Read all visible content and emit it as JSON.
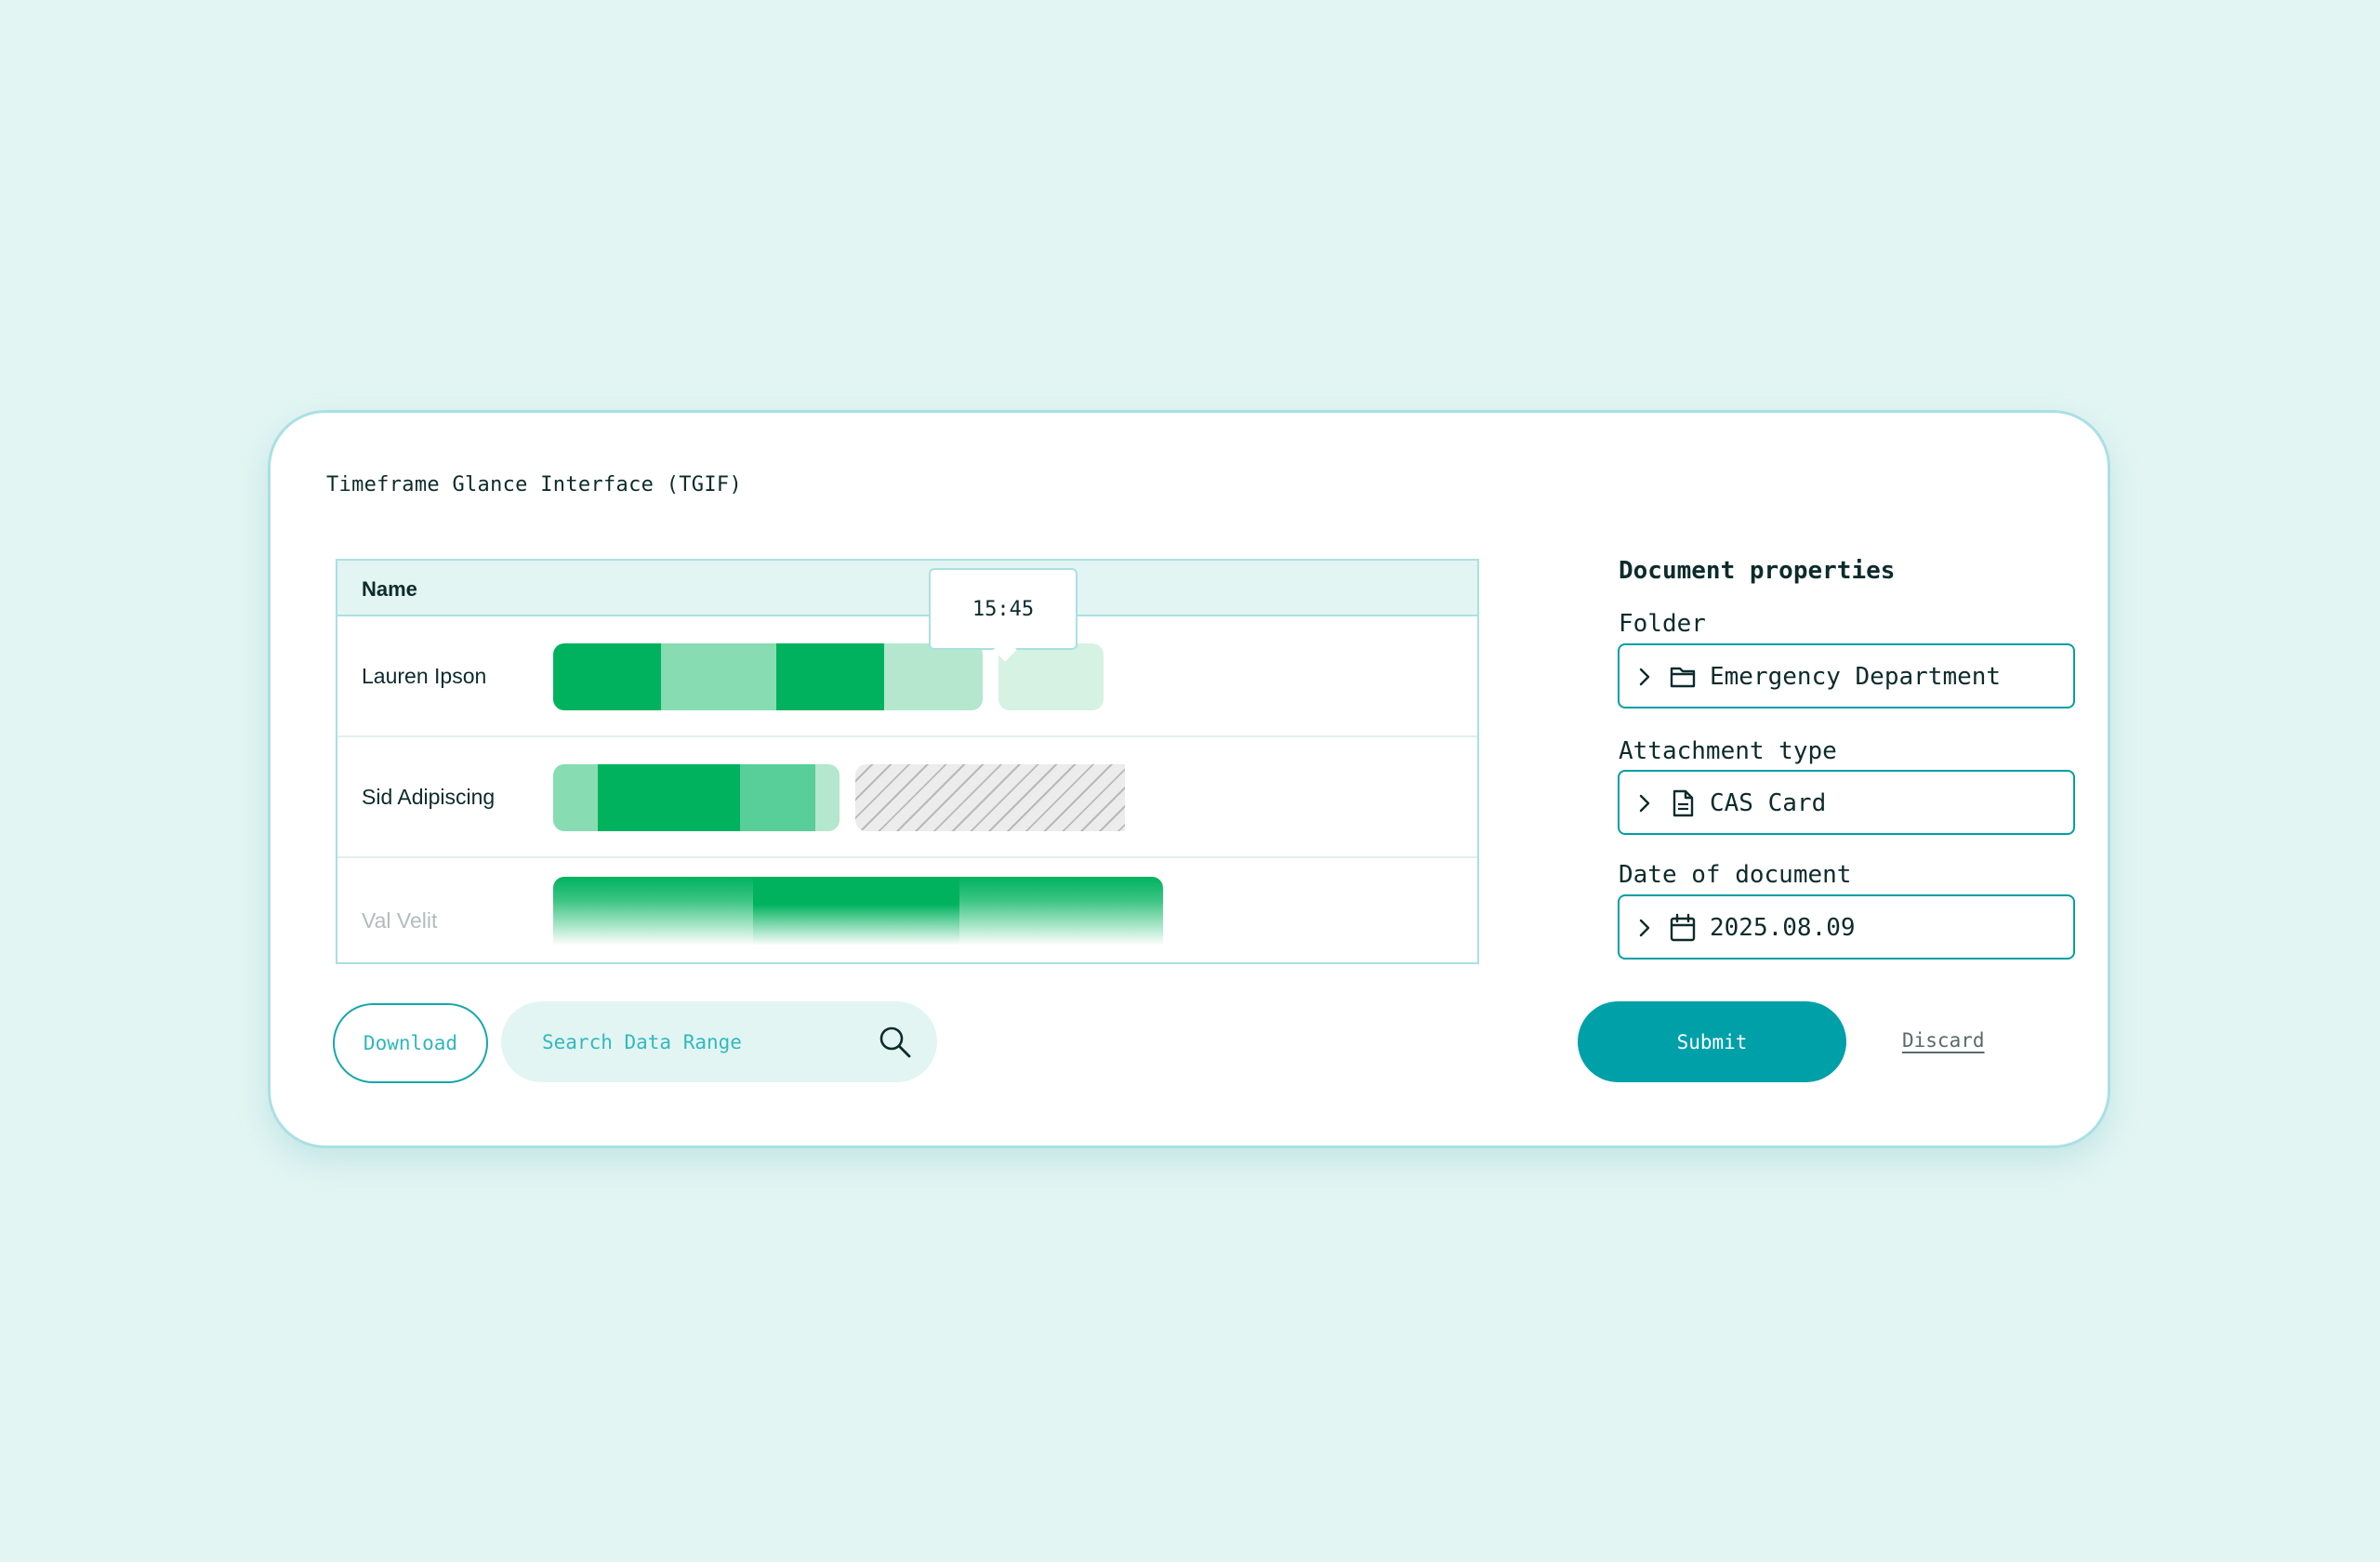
{
  "app": {
    "title": "Timeframe Glance Interface (TGIF)"
  },
  "timeline": {
    "header": "Name",
    "rows": [
      {
        "name": "Lauren Ipson"
      },
      {
        "name": "Sid Adipiscing"
      },
      {
        "name": "Val Velit"
      }
    ],
    "tooltip": "15:45"
  },
  "actions": {
    "download_label": "Download",
    "search_placeholder": "Search Data Range",
    "submit_label": "Submit",
    "discard_label": "Discard"
  },
  "properties": {
    "title": "Document properties",
    "folder": {
      "label": "Folder",
      "value": "Emergency Department",
      "icon": "folder-icon"
    },
    "attachment": {
      "label": "Attachment type",
      "value": "CAS Card",
      "icon": "document-icon"
    },
    "date": {
      "label": "Date of document",
      "value": "2025.08.09",
      "icon": "calendar-icon"
    }
  },
  "colors": {
    "background": "#e2f5f3",
    "accent": "#00a0a8",
    "bar_dark": "#00b25e",
    "bar_mid": "#58cf98",
    "bar_light": "#87dcb2",
    "bar_pale": "#b4e7cd",
    "bar_paler": "#d5f2e3"
  }
}
